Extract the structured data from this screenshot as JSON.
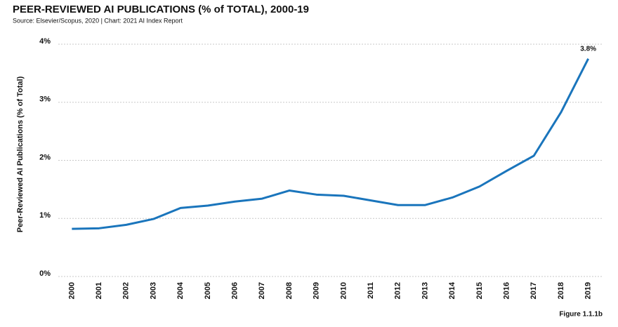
{
  "chart_data": {
    "type": "line",
    "title": "PEER-REVIEWED AI PUBLICATIONS (% of TOTAL), 2000-19",
    "subtitle": "Source: Elsevier/Scopus, 2020 | Chart: 2021 AI Index Report",
    "y_label": "Peer-Reviewed AI Publications (% of Total)",
    "figure_label": "Figure 1.1.1b",
    "categories": [
      "2000",
      "2001",
      "2002",
      "2003",
      "2004",
      "2005",
      "2006",
      "2007",
      "2008",
      "2009",
      "2010",
      "2011",
      "2012",
      "2013",
      "2014",
      "2015",
      "2016",
      "2017",
      "2018",
      "2019"
    ],
    "values": [
      0.82,
      0.83,
      0.89,
      0.99,
      1.18,
      1.22,
      1.29,
      1.34,
      1.48,
      1.41,
      1.39,
      1.31,
      1.23,
      1.23,
      1.36,
      1.55,
      1.82,
      2.08,
      2.83,
      3.75
    ],
    "value_labels": [
      null,
      null,
      null,
      null,
      null,
      null,
      null,
      null,
      null,
      null,
      null,
      null,
      null,
      null,
      null,
      null,
      null,
      null,
      null,
      "3.8%"
    ],
    "color": "#1a75bc",
    "ylim": [
      0,
      4
    ],
    "yticks": [
      {
        "value": 0,
        "label": "0%"
      },
      {
        "value": 1,
        "label": "1%"
      },
      {
        "value": 2,
        "label": "2%"
      },
      {
        "value": 3,
        "label": "3%"
      },
      {
        "value": 4,
        "label": "4%"
      }
    ],
    "grid": true
  }
}
